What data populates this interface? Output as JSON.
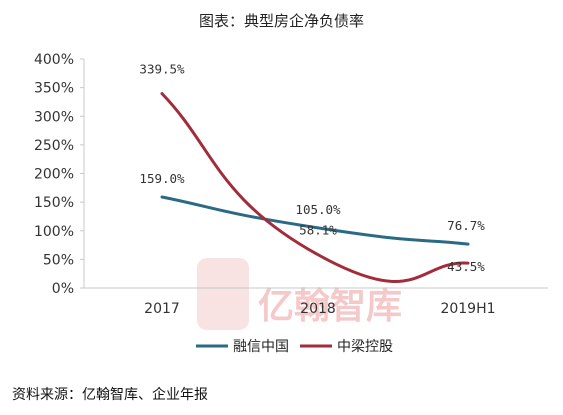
{
  "title": "图表：典型房企净负债率",
  "source": "资料来源：亿翰智库、企业年报",
  "watermark": "亿翰智库",
  "colors": {
    "rongxin": "#2b6a85",
    "zhongliang": "#a32c3a",
    "axis": "#c8c8c8"
  },
  "chart_data": {
    "type": "line",
    "title": "图表：典型房企净负债率",
    "categories": [
      "2017",
      "2018",
      "2019H1"
    ],
    "ylim": [
      0,
      400
    ],
    "yticks": [
      "0%",
      "50%",
      "100%",
      "150%",
      "200%",
      "250%",
      "300%",
      "350%",
      "400%"
    ],
    "legend_position": "bottom",
    "grid": false,
    "smooth": true,
    "series": [
      {
        "name": "融信中国",
        "values": [
          159.0,
          105.0,
          76.7
        ],
        "labels": [
          "159.0%",
          "105.0%",
          "76.7%"
        ],
        "color": "#2b6a85"
      },
      {
        "name": "中梁控股",
        "values": [
          339.5,
          58.1,
          43.5
        ],
        "labels": [
          "339.5%",
          "58.1%",
          "43.5%"
        ],
        "color": "#a32c3a"
      }
    ]
  }
}
